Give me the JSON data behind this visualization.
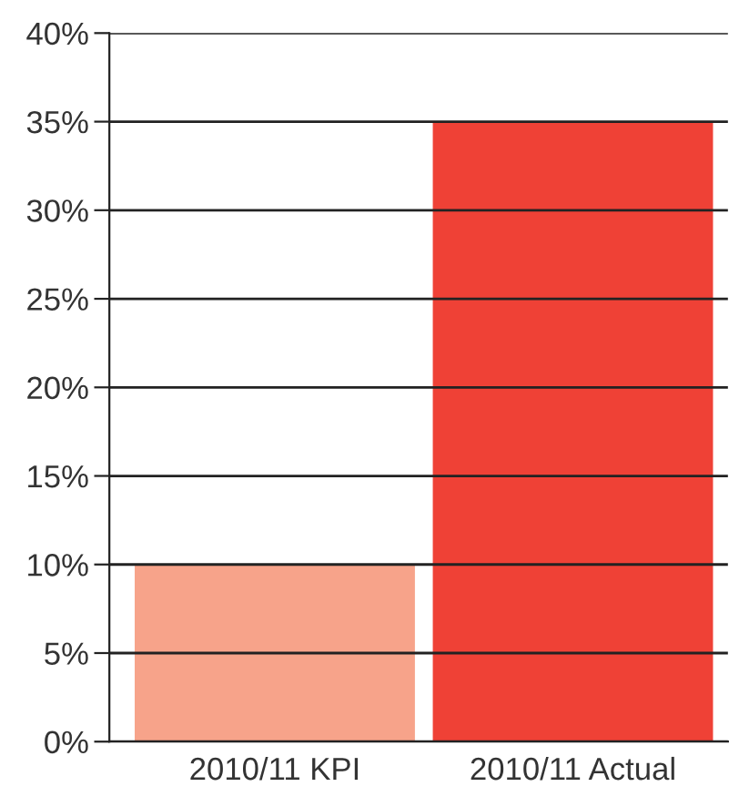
{
  "chart_data": {
    "type": "bar",
    "categories": [
      "2010/11 KPI",
      "2010/11 Actual"
    ],
    "values": [
      10,
      35
    ],
    "colors": [
      "#f7a38a",
      "#ef4136"
    ],
    "ylim": [
      0,
      40
    ],
    "yticks": [
      {
        "value": 0,
        "label": "0%"
      },
      {
        "value": 5,
        "label": "5%"
      },
      {
        "value": 10,
        "label": "10%"
      },
      {
        "value": 15,
        "label": "15%"
      },
      {
        "value": 20,
        "label": "20%"
      },
      {
        "value": 25,
        "label": "25%"
      },
      {
        "value": 30,
        "label": "30%"
      },
      {
        "value": 35,
        "label": "35%"
      },
      {
        "value": 40,
        "label": "40%"
      }
    ],
    "grid": "y",
    "legend": false
  }
}
